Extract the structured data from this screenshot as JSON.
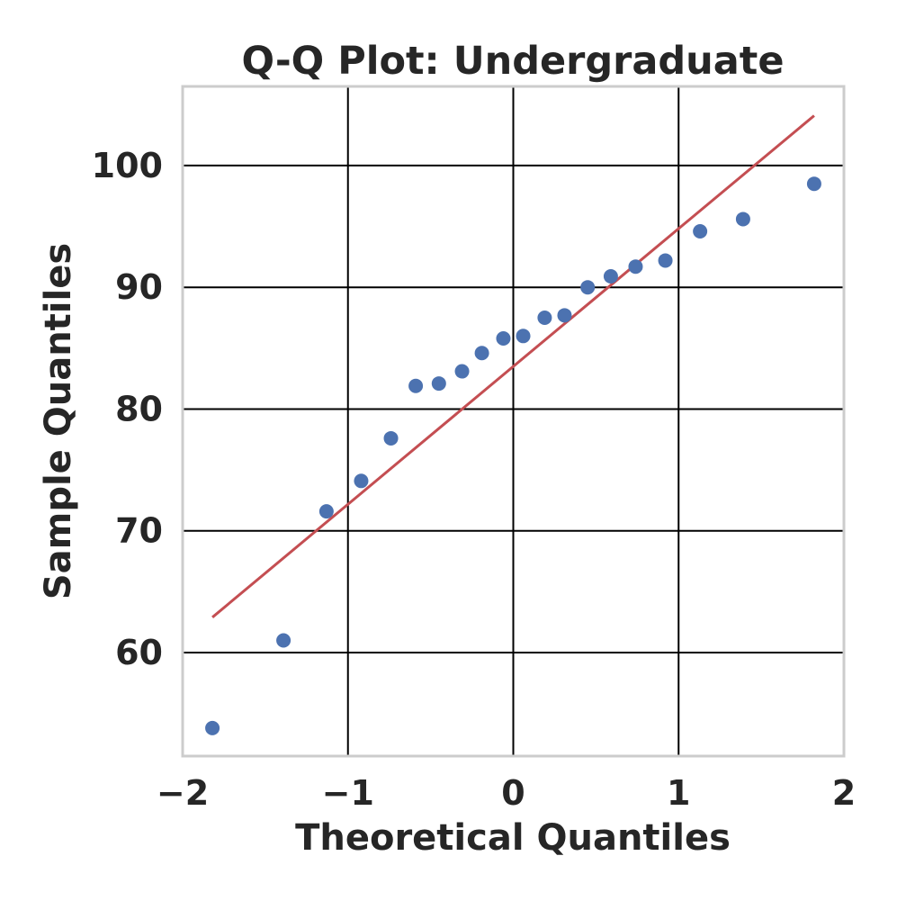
{
  "chart_data": {
    "type": "scatter",
    "title": "Q-Q Plot: Undergraduate",
    "xlabel": "Theoretical Quantiles",
    "ylabel": "Sample Quantiles",
    "xlim": [
      -2,
      2
    ],
    "ylim": [
      51.5,
      106.5
    ],
    "xticks": [
      -2,
      -1,
      0,
      1,
      2
    ],
    "xtick_labels": [
      "−2",
      "−1",
      "0",
      "1",
      "2"
    ],
    "yticks": [
      60,
      70,
      80,
      90,
      100
    ],
    "ytick_labels": [
      "60",
      "70",
      "80",
      "90",
      "100"
    ],
    "grid": true,
    "colors": {
      "points": "#4c72b0",
      "line": "#c44e52",
      "grid": "#000000",
      "frame": "#cccccc"
    },
    "series": [
      {
        "kind": "points",
        "x": [
          -1.82,
          -1.39,
          -1.13,
          -0.92,
          -0.74,
          -0.59,
          -0.45,
          -0.31,
          -0.19,
          -0.06,
          0.06,
          0.19,
          0.31,
          0.45,
          0.59,
          0.74,
          0.92,
          1.13,
          1.39,
          1.82
        ],
        "y": [
          53.8,
          61.0,
          71.6,
          74.1,
          77.6,
          81.9,
          82.1,
          83.1,
          84.6,
          85.8,
          86.0,
          87.5,
          87.7,
          90.0,
          90.9,
          91.7,
          92.2,
          94.6,
          95.6,
          98.5
        ]
      },
      {
        "kind": "line",
        "x": [
          -1.82,
          1.82
        ],
        "y": [
          62.9,
          104.1
        ]
      }
    ]
  }
}
